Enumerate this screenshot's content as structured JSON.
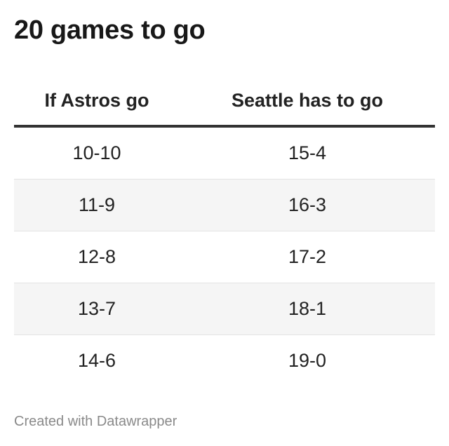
{
  "title": "20 games to go",
  "credit": "Created with Datawrapper",
  "chart_data": {
    "type": "table",
    "title": "20 games to go",
    "columns": [
      "If Astros go",
      "Seattle has to go"
    ],
    "rows": [
      [
        "10-10",
        "15-4"
      ],
      [
        "11-9",
        "16-3"
      ],
      [
        "12-8",
        "17-2"
      ],
      [
        "13-7",
        "18-1"
      ],
      [
        "14-6",
        "19-0"
      ]
    ],
    "striped_rows": true
  },
  "colors": {
    "header_rule": "#333333",
    "stripe": "#f5f5f5",
    "row_divider": "#e3e3e3",
    "credit_text": "#8a8a8a"
  }
}
